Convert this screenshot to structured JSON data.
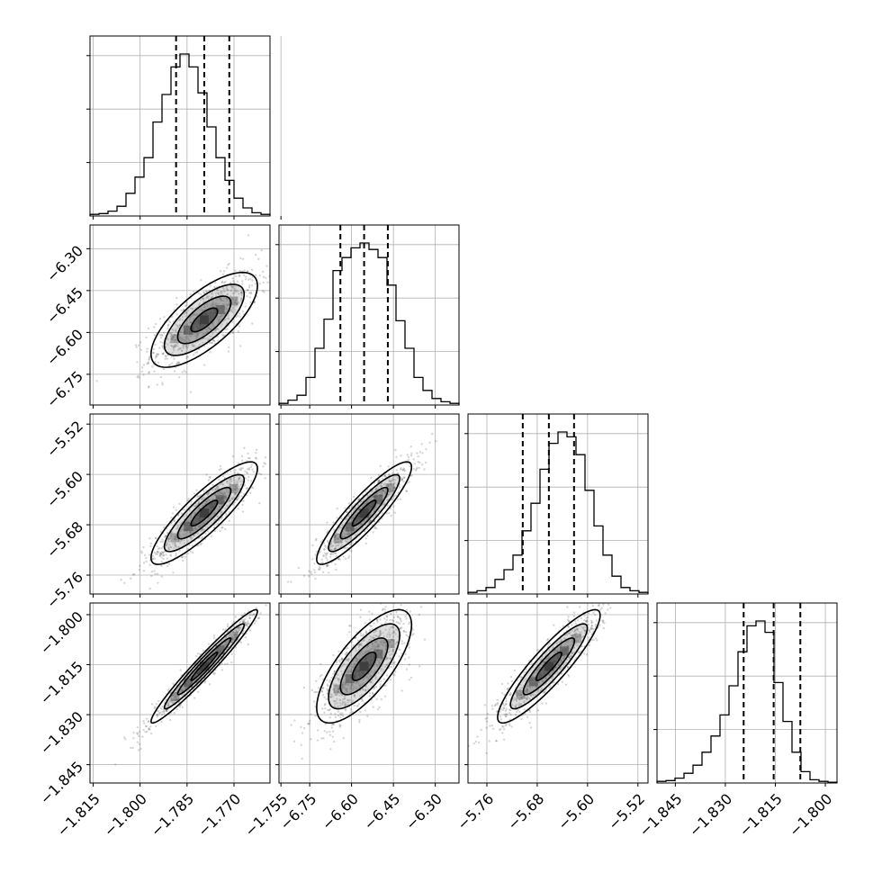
{
  "chart_data": {
    "type": "corner",
    "grid": true,
    "n_params": 4,
    "params": [
      {
        "ticks": [
          "−1.815",
          "−1.800",
          "−1.785",
          "−1.770",
          "−1.755"
        ],
        "tick_values": [
          -1.815,
          -1.8,
          -1.785,
          -1.77,
          -1.755
        ],
        "range": [
          -1.816,
          -1.7585
        ],
        "quantiles": [
          -1.7885,
          -1.7795,
          -1.7715
        ],
        "hist": [
          0.01,
          0.015,
          0.03,
          0.06,
          0.14,
          0.24,
          0.36,
          0.58,
          0.75,
          0.92,
          1.0,
          0.92,
          0.76,
          0.55,
          0.36,
          0.22,
          0.11,
          0.05,
          0.02,
          0.01
        ]
      },
      {
        "ticks": [
          "−6.75",
          "−6.60",
          "−6.45",
          "−6.30"
        ],
        "tick_values": [
          -6.75,
          -6.6,
          -6.45,
          -6.3
        ],
        "range": [
          -6.86,
          -6.215
        ],
        "quantiles": [
          -6.64,
          -6.555,
          -6.47
        ],
        "hist": [
          0.01,
          0.03,
          0.06,
          0.17,
          0.35,
          0.53,
          0.83,
          0.91,
          0.97,
          1.0,
          0.96,
          0.91,
          0.74,
          0.52,
          0.35,
          0.17,
          0.09,
          0.04,
          0.02,
          0.01
        ]
      },
      {
        "ticks": [
          "−5.76",
          "−5.68",
          "−5.60",
          "−5.52"
        ],
        "tick_values": [
          -5.76,
          -5.68,
          -5.6,
          -5.52
        ],
        "range": [
          -5.79,
          -5.504
        ],
        "quantiles": [
          -5.703,
          -5.6615,
          -5.6215
        ],
        "hist": [
          0.01,
          0.02,
          0.04,
          0.09,
          0.15,
          0.24,
          0.39,
          0.56,
          0.77,
          0.93,
          1.0,
          0.97,
          0.86,
          0.64,
          0.42,
          0.24,
          0.11,
          0.04,
          0.02,
          0.01
        ]
      },
      {
        "ticks": [
          "−1.845",
          "−1.830",
          "−1.815",
          "−1.800"
        ],
        "tick_values": [
          -1.845,
          -1.83,
          -1.815,
          -1.8
        ],
        "range": [
          -1.8505,
          -1.7965
        ],
        "quantiles": [
          -1.8245,
          -1.8155,
          -1.8075
        ],
        "hist": [
          0.01,
          0.015,
          0.03,
          0.06,
          0.11,
          0.19,
          0.29,
          0.42,
          0.6,
          0.81,
          0.97,
          1.0,
          0.93,
          0.62,
          0.38,
          0.19,
          0.07,
          0.02,
          0.01,
          0.005
        ]
      }
    ],
    "correlations": [
      [
        1.0,
        0.72,
        0.87,
        0.97
      ],
      [
        0.72,
        1.0,
        0.9,
        0.73
      ],
      [
        0.87,
        0.9,
        1.0,
        0.9
      ],
      [
        0.97,
        0.73,
        0.9,
        1.0
      ]
    ]
  }
}
